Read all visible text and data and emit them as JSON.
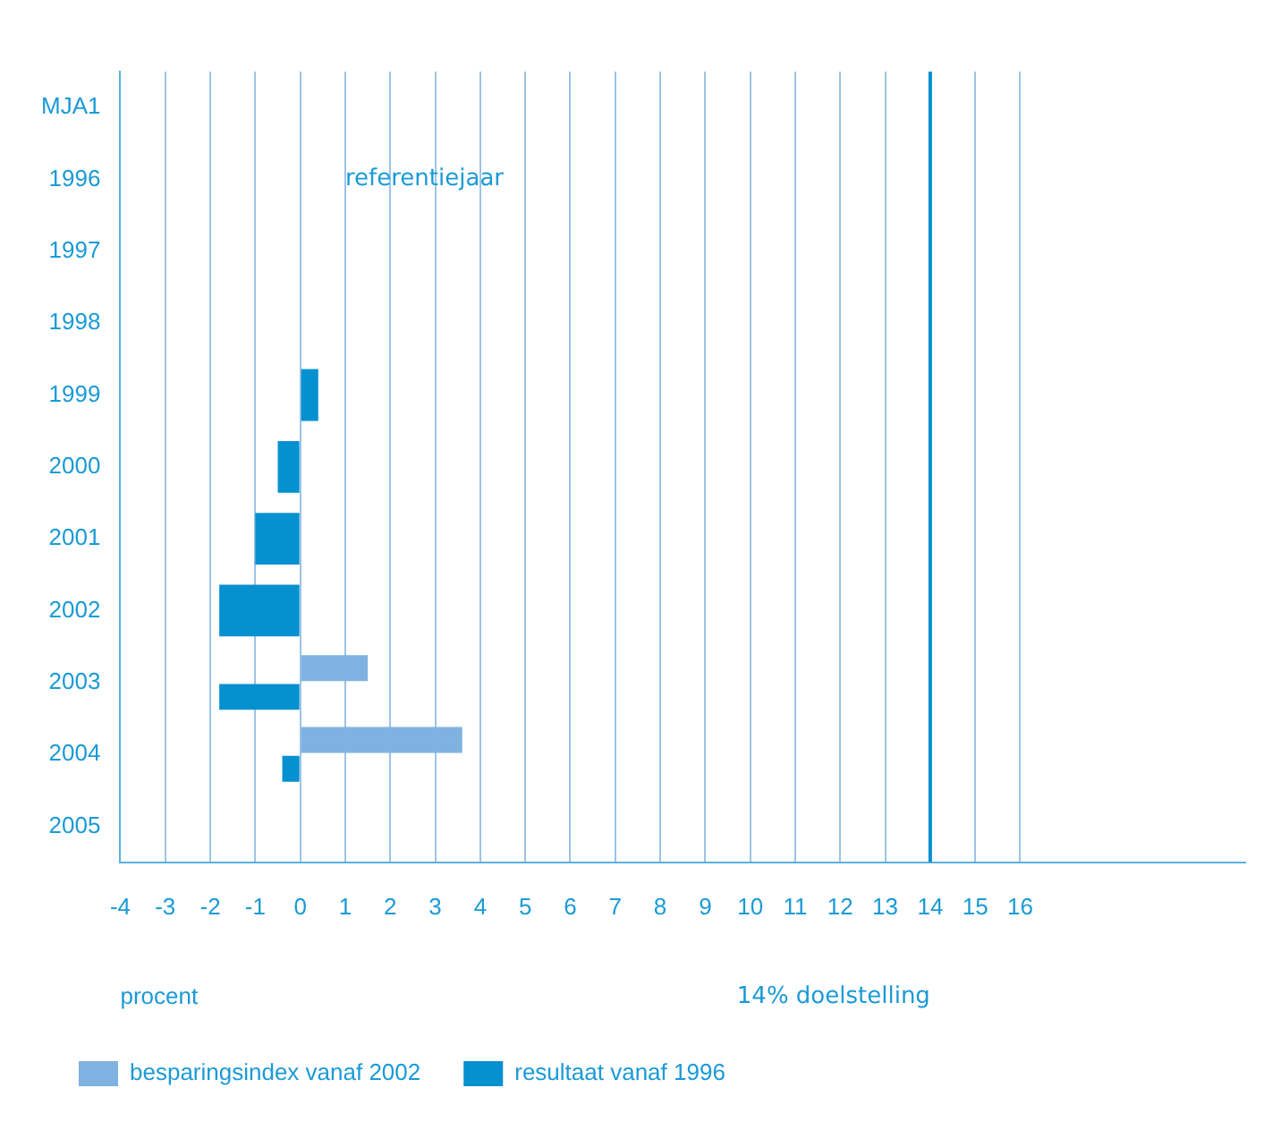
{
  "chart_data": {
    "type": "bar",
    "orientation": "horizontal",
    "categories": [
      "MJA1",
      "1996",
      "1997",
      "1998",
      "1999",
      "2000",
      "2001",
      "2002",
      "2003",
      "2004",
      "2005"
    ],
    "series": [
      {
        "name": "besparingsindex vanaf 2002",
        "color": "#7fb2e0",
        "values": [
          null,
          null,
          null,
          null,
          null,
          null,
          null,
          null,
          1.5,
          3.6,
          null
        ]
      },
      {
        "name": "resultaat vanaf 1996",
        "color": "#0590d0",
        "values": [
          null,
          null,
          null,
          null,
          0.4,
          -0.5,
          -1.0,
          -1.8,
          -1.8,
          -0.4,
          null
        ]
      }
    ],
    "xlim": [
      -4,
      21
    ],
    "xticks": [
      -4,
      -3,
      -2,
      -1,
      0,
      1,
      2,
      3,
      4,
      5,
      6,
      7,
      8,
      9,
      10,
      11,
      12,
      13,
      14,
      15,
      16
    ],
    "xlabel": "procent",
    "ref_lines": [
      {
        "axis": "x",
        "value": 14,
        "label": "14% doelstelling",
        "color": "#0590d0"
      }
    ],
    "annotations": [
      "referentiejaar"
    ],
    "grid": "x",
    "legend": "bottom"
  }
}
